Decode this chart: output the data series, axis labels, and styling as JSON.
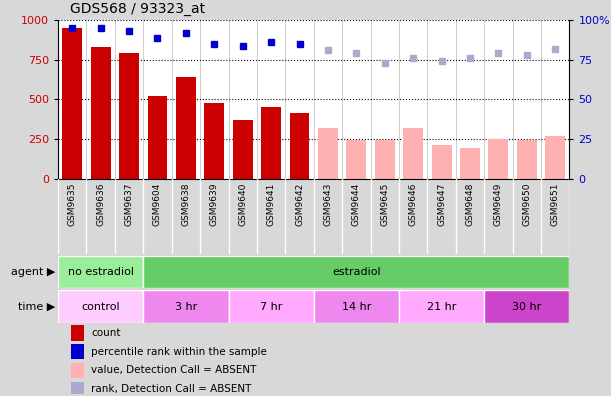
{
  "title": "GDS568 / 93323_at",
  "samples": [
    "GSM9635",
    "GSM9636",
    "GSM9637",
    "GSM9604",
    "GSM9638",
    "GSM9639",
    "GSM9640",
    "GSM9641",
    "GSM9642",
    "GSM9643",
    "GSM9644",
    "GSM9645",
    "GSM9646",
    "GSM9647",
    "GSM9648",
    "GSM9649",
    "GSM9650",
    "GSM9651"
  ],
  "bar_values": [
    950,
    830,
    790,
    520,
    640,
    475,
    370,
    450,
    415,
    320,
    245,
    245,
    320,
    210,
    195,
    250,
    245,
    270
  ],
  "bar_absent": [
    false,
    false,
    false,
    false,
    false,
    false,
    false,
    false,
    false,
    true,
    true,
    true,
    true,
    true,
    true,
    true,
    true,
    true
  ],
  "rank_values": [
    95,
    95,
    93,
    89,
    92,
    85,
    84,
    86,
    85,
    81,
    79,
    73,
    76,
    74,
    76,
    79,
    78,
    82
  ],
  "rank_absent": [
    false,
    false,
    false,
    false,
    false,
    false,
    false,
    false,
    false,
    true,
    true,
    true,
    true,
    true,
    true,
    true,
    true,
    true
  ],
  "bar_color_present": "#cc0000",
  "bar_color_absent": "#ffb0b0",
  "rank_color_present": "#0000cc",
  "rank_color_absent": "#aaaacc",
  "agent_groups": [
    {
      "label": "no estradiol",
      "start": 0,
      "end": 3,
      "color": "#99ee99"
    },
    {
      "label": "estradiol",
      "start": 3,
      "end": 18,
      "color": "#66cc66"
    }
  ],
  "time_groups": [
    {
      "label": "control",
      "start": 0,
      "end": 3,
      "color": "#ffccff"
    },
    {
      "label": "3 hr",
      "start": 3,
      "end": 6,
      "color": "#ee88ee"
    },
    {
      "label": "7 hr",
      "start": 6,
      "end": 9,
      "color": "#ffaaff"
    },
    {
      "label": "14 hr",
      "start": 9,
      "end": 12,
      "color": "#ee88ee"
    },
    {
      "label": "21 hr",
      "start": 12,
      "end": 15,
      "color": "#ffaaff"
    },
    {
      "label": "30 hr",
      "start": 15,
      "end": 18,
      "color": "#cc44cc"
    }
  ],
  "ylim_left": [
    0,
    1000
  ],
  "ylim_right": [
    0,
    100
  ],
  "yticks_left": [
    0,
    250,
    500,
    750,
    1000
  ],
  "yticks_right": [
    0,
    25,
    50,
    75,
    100
  ],
  "bg_color": "#d8d8d8",
  "plot_bg_color": "#ffffff",
  "legend_items": [
    {
      "label": "count",
      "color": "#cc0000"
    },
    {
      "label": "percentile rank within the sample",
      "color": "#0000cc"
    },
    {
      "label": "value, Detection Call = ABSENT",
      "color": "#ffb0b0"
    },
    {
      "label": "rank, Detection Call = ABSENT",
      "color": "#aaaacc"
    }
  ]
}
